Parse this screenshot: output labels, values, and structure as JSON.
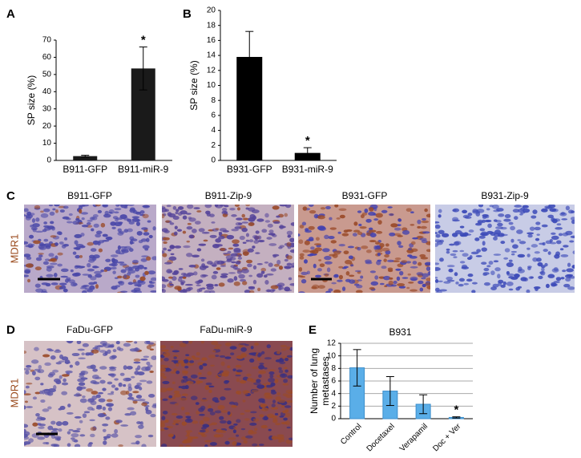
{
  "chart_data": [
    {
      "type": "bar",
      "ylabel": "SP size (%)",
      "categories": [
        "B911-GFP",
        "B911-miR-9"
      ],
      "values": [
        2.5,
        53.5
      ],
      "errors": [
        0.5,
        12.5
      ],
      "color": "#1a1a1a",
      "ylim": [
        0,
        70
      ],
      "yticks": [
        0,
        10,
        20,
        30,
        40,
        50,
        60,
        70
      ],
      "grid": false,
      "annotations": [
        {
          "text": "*",
          "category": "B911-miR-9"
        }
      ]
    },
    {
      "type": "bar",
      "ylabel": "SP size (%)",
      "categories": [
        "B931-GFP",
        "B931-miR-9"
      ],
      "values": [
        13.8,
        1.0
      ],
      "errors": [
        3.4,
        0.7
      ],
      "color": "#000000",
      "ylim": [
        0,
        20
      ],
      "yticks": [
        0,
        2,
        4,
        6,
        8,
        10,
        12,
        14,
        16,
        18,
        20
      ],
      "grid": false,
      "annotations": [
        {
          "text": "*",
          "category": "B931-miR-9"
        }
      ]
    },
    {
      "type": "bar",
      "title": "B931",
      "ylabel": [
        "Number of lung",
        "metastases"
      ],
      "categories": [
        "Control",
        "Docetaxel",
        "Verapamil",
        "Doc + Ver"
      ],
      "values": [
        8.1,
        4.4,
        2.3,
        0.2
      ],
      "errors": [
        2.9,
        2.3,
        1.5,
        0.1
      ],
      "color": "#5aaee8",
      "ylim": [
        0,
        12
      ],
      "yticks": [
        0,
        2,
        4,
        6,
        8,
        10,
        12
      ],
      "grid": true,
      "annotations": [
        {
          "text": "*",
          "category": "Doc + Ver"
        }
      ]
    }
  ],
  "panels": [
    "A",
    "B",
    "C",
    "D",
    "E"
  ],
  "stain": "MDR1",
  "panel_c_labels": [
    "B911-GFP",
    "B911-Zip-9",
    "B931-GFP",
    "B931-Zip-9"
  ],
  "panel_d_labels": [
    "FaDu-GFP",
    "FaDu-miR-9"
  ]
}
